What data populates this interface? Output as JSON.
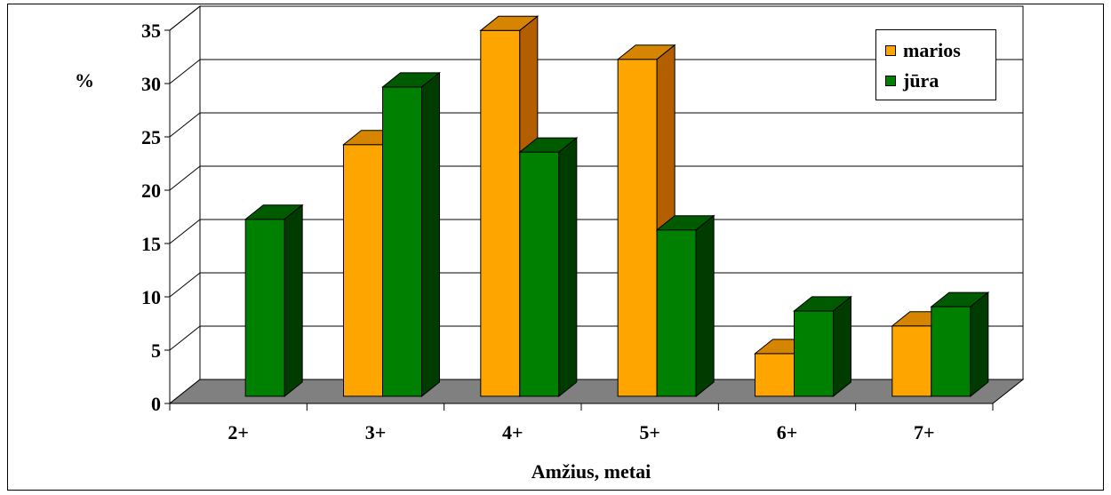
{
  "chart_data": {
    "type": "bar",
    "title": "",
    "ylabel": "%",
    "xlabel": "Amžius, metai",
    "ylim": [
      0,
      35
    ],
    "yticks": [
      "0",
      "5",
      "10",
      "15",
      "20",
      "25",
      "30",
      "35"
    ],
    "categories": [
      "2+",
      "3+",
      "4+",
      "5+",
      "6+",
      "7+"
    ],
    "series": [
      {
        "name": "marios",
        "values": [
          0,
          23.6,
          34.3,
          31.6,
          4.0,
          6.6
        ],
        "color": "#FFA500",
        "side_color": "#B35F00",
        "top_color": "#D58500"
      },
      {
        "name": "jūra",
        "values": [
          16.6,
          29.0,
          22.9,
          15.6,
          8.0,
          8.4
        ],
        "color": "#008000",
        "side_color": "#003C00",
        "top_color": "#005A00"
      }
    ],
    "grid": true,
    "style": "3d-column",
    "legend_position": "top-right",
    "floor_color": "#808080"
  }
}
